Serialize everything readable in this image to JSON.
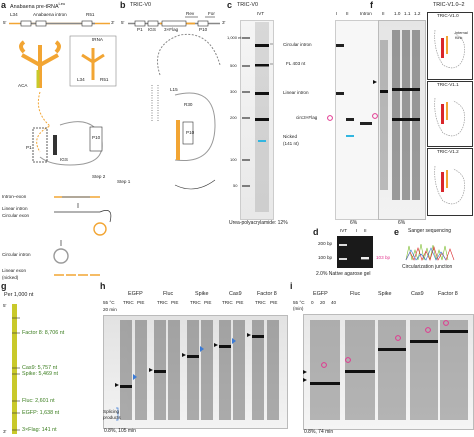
{
  "panels": {
    "a": {
      "letter": "a",
      "title": "Anabaena pre-tRNA",
      "title_sup": "Leu",
      "seq_labels": [
        "L34",
        "Anabaena intron",
        "R51"
      ],
      "strand": [
        "5'",
        "3'"
      ],
      "boxes": [
        "P1",
        "IGS",
        "P10"
      ],
      "trna_label": "tRNA",
      "inset_labels": [
        "L34",
        "R51"
      ],
      "aca": "ACA",
      "structure_labels": [
        "P1",
        "IGS",
        "P10"
      ],
      "step_labels": [
        "Step 1",
        "Step 2"
      ],
      "products": [
        "Intron–exon",
        "Linear intron",
        "Circular exon",
        "Circular intron",
        "Linear exon",
        "(nicked)"
      ]
    },
    "b": {
      "letter": "b",
      "title": "TRIC-V0",
      "seq_labels": [
        "Rev",
        "For"
      ],
      "strand": [
        "5'",
        "3'"
      ],
      "boxes": [
        "P1",
        "IGS",
        "3×Flag",
        "P10"
      ],
      "structure_labels": [
        "L15",
        "R30",
        "P10"
      ]
    },
    "c": {
      "letter": "c",
      "header": "TRIC-V0",
      "lanes": [
        "IVT",
        "I",
        "II",
        "Intron"
      ],
      "ladder": [
        "1,000 nt",
        "500",
        "300",
        "200",
        "100",
        "50"
      ],
      "bands": [
        "Circular intron",
        "FL 403 nt",
        "Linear intron",
        "circ3×Flag"
      ],
      "nicked": [
        "Nicked",
        "(141 nt)"
      ],
      "gel_caption_left": "Urea-polyacrylamide: 12%",
      "gel_caption_right": "6%"
    },
    "d": {
      "letter": "d",
      "lanes": [
        "IVT",
        "I",
        "II"
      ],
      "ladder": [
        "200 bp",
        "100 bp"
      ],
      "band": "103 bp",
      "caption": "2.0% Native agarose gel"
    },
    "e": {
      "letter": "e",
      "title": "Sanger sequencing",
      "caption": "Circularization junction"
    },
    "f": {
      "letter": "f",
      "lanes": [
        "II",
        "1.0",
        "1.1",
        "1.2"
      ],
      "caption": "6%",
      "header": "TRIC-V1.0–2",
      "panel_labels": [
        "TRIC-V1.0",
        "TRIC-V1.1",
        "TRIC-V1.2"
      ],
      "inset_labels": [
        "Internal",
        "Kink"
      ]
    },
    "g": {
      "letter": "g",
      "title": "Per 1,000 nt",
      "items": [
        {
          "label": "Factor 8: 8,706 nt",
          "nt": 8706
        },
        {
          "label": "Cas9: 5,757 nt",
          "nt": 5757
        },
        {
          "label": "Spike: 5,469 nt",
          "nt": 5469
        },
        {
          "label": "Fluc: 2,601 nt",
          "nt": 2601
        },
        {
          "label": "EGFP: 1,638 nt",
          "nt": 1638
        },
        {
          "label": "3×Flag: 141 nt",
          "nt": 141
        }
      ],
      "strand": [
        "5'",
        "3'"
      ]
    },
    "h": {
      "letter": "h",
      "groups": [
        "EGFP",
        "Fluc",
        "Spike",
        "Cas9",
        "Factor 8"
      ],
      "sublanes": [
        "TRIC",
        "PIE"
      ],
      "temp_label": "55 °C",
      "time_label": "20 min",
      "splicing": [
        "Splicing",
        "products"
      ],
      "caption": "0.8%, 105 min"
    },
    "i": {
      "letter": "i",
      "groups": [
        "EGFP",
        "Fluc",
        "Spike",
        "Cas9",
        "Factor 8"
      ],
      "temp_label": "55 °C",
      "time_label": "(min)",
      "times": [
        "0",
        "20",
        "40"
      ],
      "caption": "0.8%, 74 min"
    }
  },
  "colors": {
    "orange": "#f2a533",
    "yellow_green": "#c9c92a",
    "magenta": "#e2368f",
    "blue": "#3b7bd6",
    "cyan": "#32b6e0",
    "green": "#7cbd2e",
    "red": "#d9262a",
    "gel_dark": "#1a1a1a"
  }
}
